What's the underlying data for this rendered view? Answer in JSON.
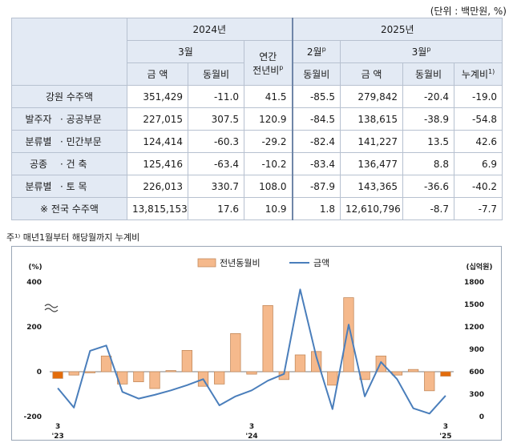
{
  "unit_note": "(단위 : 백만원, %)",
  "table": {
    "h_2024": "2024년",
    "h_2025": "2025년",
    "h_march_2024": "3월",
    "h_annual_1": "연간",
    "h_annual_2": "전년비",
    "h_annual_sup": "p",
    "h_feb_2025": "2월",
    "h_feb_sup": "p",
    "h_march_2025": "3월",
    "h_march_sup": "p",
    "h_amount": "금 액",
    "h_mom": "동월비",
    "h_cum": "누계비",
    "h_cum_sup": "1)",
    "rows": [
      {
        "group": "",
        "label": "강원 수주액",
        "c1": "351,429",
        "c2": "-11.0",
        "c3": "41.5",
        "c4": "-85.5",
        "c5": "279,842",
        "c6": "-20.4",
        "c7": "-19.0"
      },
      {
        "group": "발주자 분류별",
        "label": "· 공공부문",
        "c1": "227,015",
        "c2": "307.5",
        "c3": "120.9",
        "c4": "-84.5",
        "c5": "138,615",
        "c6": "-38.9",
        "c7": "-54.8"
      },
      {
        "group": "",
        "label": "· 민간부문",
        "c1": "124,414",
        "c2": "-60.3",
        "c3": "-29.2",
        "c4": "-82.4",
        "c5": "141,227",
        "c6": "13.5",
        "c7": "42.6"
      },
      {
        "group": "공종 분류별",
        "label": "· 건 축",
        "c1": "125,416",
        "c2": "-63.4",
        "c3": "-10.2",
        "c4": "-83.4",
        "c5": "136,477",
        "c6": "8.8",
        "c7": "6.9"
      },
      {
        "group": "",
        "label": "· 토 목",
        "c1": "226,013",
        "c2": "330.7",
        "c3": "108.0",
        "c4": "-87.9",
        "c5": "143,365",
        "c6": "-36.6",
        "c7": "-40.2"
      },
      {
        "group": "",
        "label": "※ 전국 수주액",
        "c1": "13,815,153",
        "c2": "17.6",
        "c3": "10.9",
        "c4": "1.8",
        "c5": "12,610,796",
        "c6": "-8.7",
        "c7": "-7.7"
      }
    ],
    "group_owner_1": "발주자",
    "group_owner_2": "분류별",
    "group_type_1": "공종",
    "group_type_2": "분류별"
  },
  "footnote": "주¹⁾ 매년1월부터 해당월까지 누계비",
  "chart_data": {
    "type": "bar+line",
    "left_unit": "(%)",
    "right_unit": "(십억원)",
    "legend": [
      "전년동월비",
      "금액"
    ],
    "left_ticks": [
      "400",
      "200",
      "0",
      "-200"
    ],
    "right_ticks": [
      "1800",
      "1500",
      "1200",
      "900",
      "600",
      "300",
      "0"
    ],
    "ylim_left": [
      -200,
      400
    ],
    "ylim_right": [
      0,
      1800
    ],
    "x_labels": [
      {
        "index": 0,
        "top": "3",
        "bottom": "'23"
      },
      {
        "index": 12,
        "top": "3",
        "bottom": "'24"
      },
      {
        "index": 24,
        "top": "3",
        "bottom": "'25"
      }
    ],
    "months": [
      "2023-03",
      "2023-04",
      "2023-05",
      "2023-06",
      "2023-07",
      "2023-08",
      "2023-09",
      "2023-10",
      "2023-11",
      "2023-12",
      "2024-01",
      "2024-02",
      "2024-03",
      "2024-04",
      "2024-05",
      "2024-06",
      "2024-07",
      "2024-08",
      "2024-09",
      "2024-10",
      "2024-11",
      "2024-12",
      "2025-01",
      "2025-02",
      "2025-03"
    ],
    "yoy_percent": [
      -30,
      -15,
      -5,
      70,
      -55,
      -45,
      -75,
      5,
      95,
      -65,
      -55,
      170,
      -11,
      295,
      -35,
      75,
      90,
      -60,
      330,
      -35,
      70,
      -15,
      10,
      -85,
      -20
    ],
    "amount_billion": [
      380,
      120,
      880,
      950,
      330,
      240,
      290,
      350,
      420,
      500,
      150,
      270,
      350,
      480,
      570,
      1700,
      800,
      100,
      1230,
      270,
      730,
      500,
      110,
      40,
      280
    ],
    "highlight_bar_indices": [
      0,
      24
    ],
    "colors": {
      "bar": "#f5b98c",
      "bar_stroke": "#c48a5c",
      "bar_highlight": "#e46c0a",
      "line": "#4a7ebb",
      "grid": "#d9d9d9",
      "table_header": "#e3eaf4"
    }
  }
}
